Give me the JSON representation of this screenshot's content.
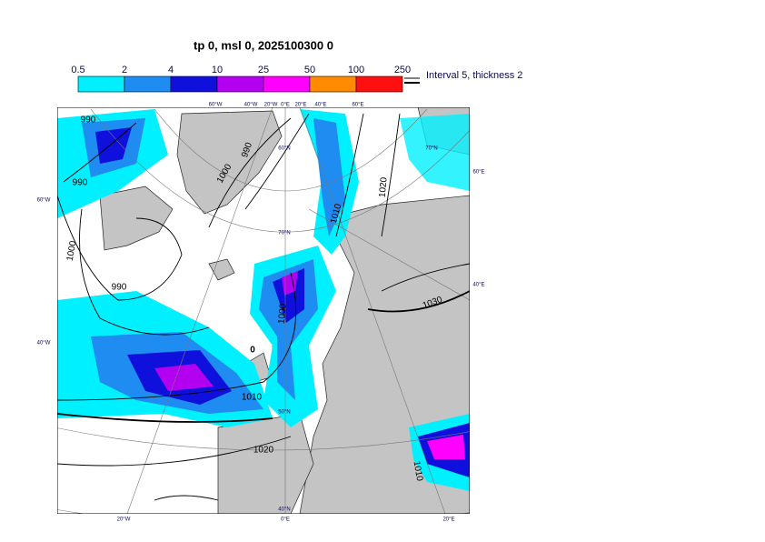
{
  "title": "tp 0, msl 0, 2025100300 0",
  "colorbar": {
    "ticks": [
      0.5,
      2,
      4,
      10,
      25,
      50,
      100,
      250
    ],
    "colors": [
      "#00f0ff",
      "#1e8cf0",
      "#1010dc",
      "#b400f0",
      "#ff00ff",
      "#ff8c00",
      "#ff1010"
    ]
  },
  "legend": "Interval 5, thickness 2",
  "map": {
    "labels": [
      "60°W",
      "40°W",
      "20°W",
      "0°E",
      "20°E",
      "40°E",
      "60°E",
      "60°W",
      "40°W",
      "20°W",
      "0°E",
      "20°E",
      "60°E",
      "40°E",
      "70°N",
      "60°N",
      "70°N",
      "50°N",
      "40°N",
      "990",
      "990",
      "990",
      "1000",
      "1000",
      "990",
      "1010",
      "1020",
      "1030",
      "1000",
      "1010",
      "1020",
      "1010",
      "0"
    ]
  }
}
